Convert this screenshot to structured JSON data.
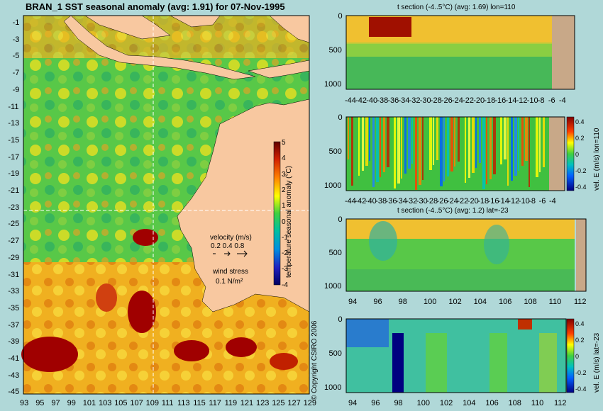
{
  "main_map": {
    "title": "BRAN_1 SST seasonal anomaly (avg: 1.91) for 07-Nov-1995",
    "lat_ticks": [
      "-1",
      "-3",
      "-5",
      "-7",
      "-9",
      "-11",
      "-13",
      "-15",
      "-17",
      "-19",
      "-21",
      "-23",
      "-25",
      "-27",
      "-29",
      "-31",
      "-33",
      "-35",
      "-37",
      "-39",
      "-41",
      "-43",
      "-45"
    ],
    "lon_ticks": [
      "93",
      "95",
      "97",
      "99",
      "101",
      "103",
      "105",
      "107",
      "109",
      "111",
      "113",
      "115",
      "117",
      "119",
      "121",
      "123",
      "125",
      "127",
      "129"
    ],
    "colorbar_ticks": [
      "5",
      "4",
      "3",
      "2",
      "1",
      "0",
      "-1",
      "-2",
      "-3",
      "-4"
    ],
    "colorbar_label": "temperature seasonal anomaly (°C)",
    "legend": {
      "velocity_label": "velocity (m/s)",
      "velocity_scale": "0.2 0.4 0.8",
      "wind_label": "wind stress",
      "wind_scale": "0.1 N/m²"
    },
    "section_lines": {
      "lon": "110",
      "lat": "-23"
    },
    "colors": {
      "land": "#f8c8a0",
      "warm": "#a00000",
      "neutral": "#40c040",
      "cool": "#008060"
    }
  },
  "copyright": "© Copyright CSIRO 2006",
  "panels": [
    {
      "id": "t-lon",
      "title": "t section (-4..5°C) (avg: 1.69) lon=110",
      "y_ticks": [
        "0",
        "500",
        "1000"
      ],
      "x_ticks": [
        "-44",
        "-42",
        "-40",
        "-38",
        "-36",
        "-34",
        "-32",
        "-30",
        "-28",
        "-26",
        "-24",
        "-22",
        "-20",
        "-18",
        "-16",
        "-14",
        "-12",
        "-10",
        "-8",
        "-6",
        "-4"
      ],
      "colorbar": null
    },
    {
      "id": "v-lon",
      "title": "",
      "y_ticks": [
        "0",
        "500",
        "1000"
      ],
      "x_ticks": [
        "-44",
        "-42",
        "-40",
        "-38",
        "-36",
        "-34",
        "-32",
        "-30",
        "-28",
        "-26",
        "-24",
        "-22",
        "-20",
        "-18",
        "-16",
        "-14",
        "-12",
        "-10",
        "-8",
        "-6",
        "-4"
      ],
      "colorbar": {
        "ticks": [
          "0.4",
          "0.2",
          "0",
          "-0.2",
          "-0.4"
        ],
        "label": "vel. E (m/s) lon=110"
      }
    },
    {
      "id": "t-lat",
      "title": "t section (-4..5°C) (avg: 1.2) lat=-23",
      "y_ticks": [
        "0",
        "500",
        "1000"
      ],
      "x_ticks": [
        "94",
        "96",
        "98",
        "100",
        "102",
        "104",
        "106",
        "108",
        "110",
        "112"
      ],
      "colorbar": null
    },
    {
      "id": "v-lat",
      "title": "",
      "y_ticks": [
        "0",
        "500",
        "1000"
      ],
      "x_ticks": [
        "94",
        "96",
        "98",
        "100",
        "102",
        "104",
        "106",
        "108",
        "110",
        "112"
      ],
      "colorbar": {
        "ticks": [
          "0.4",
          "0.2",
          "0",
          "-0.2",
          "-0.4"
        ],
        "label": "vel. E (m/s) lat=-23"
      }
    }
  ]
}
